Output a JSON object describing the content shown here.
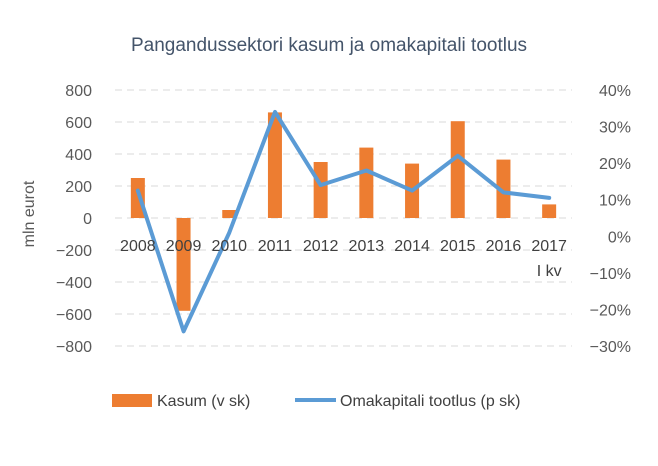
{
  "chart_data": {
    "type": "bar",
    "title": "Pangandussektori kasum ja omakapitali tootlus",
    "ylabel": "mln eurot",
    "categories": [
      "2008",
      "2009",
      "2010",
      "2011",
      "2012",
      "2013",
      "2014",
      "2015",
      "2016",
      "2017"
    ],
    "last_category_sub": "I kv",
    "ylim": [
      -800,
      800
    ],
    "yticks": [
      800,
      600,
      400,
      200,
      0,
      -200,
      -400,
      -600,
      -800
    ],
    "y2lim": [
      -30,
      40
    ],
    "y2ticks": [
      "40%",
      "30%",
      "20%",
      "10%",
      "0%",
      "−10%",
      "−20%",
      "−30%"
    ],
    "y2tick_values": [
      40,
      30,
      20,
      10,
      0,
      -10,
      -20,
      -30
    ],
    "grid": true,
    "legend_position": "bottom",
    "series": [
      {
        "name": "Kasum (v sk)",
        "type": "bar",
        "axis": "left",
        "color": "#ed7d31",
        "values": [
          250,
          -580,
          50,
          660,
          350,
          440,
          340,
          605,
          365,
          85
        ]
      },
      {
        "name": "Omakapitali tootlus (p sk)",
        "type": "line",
        "axis": "right",
        "color": "#5b9bd5",
        "values": [
          12.5,
          -26,
          1,
          34,
          14,
          18,
          12.5,
          22,
          12,
          10.5
        ]
      }
    ]
  }
}
